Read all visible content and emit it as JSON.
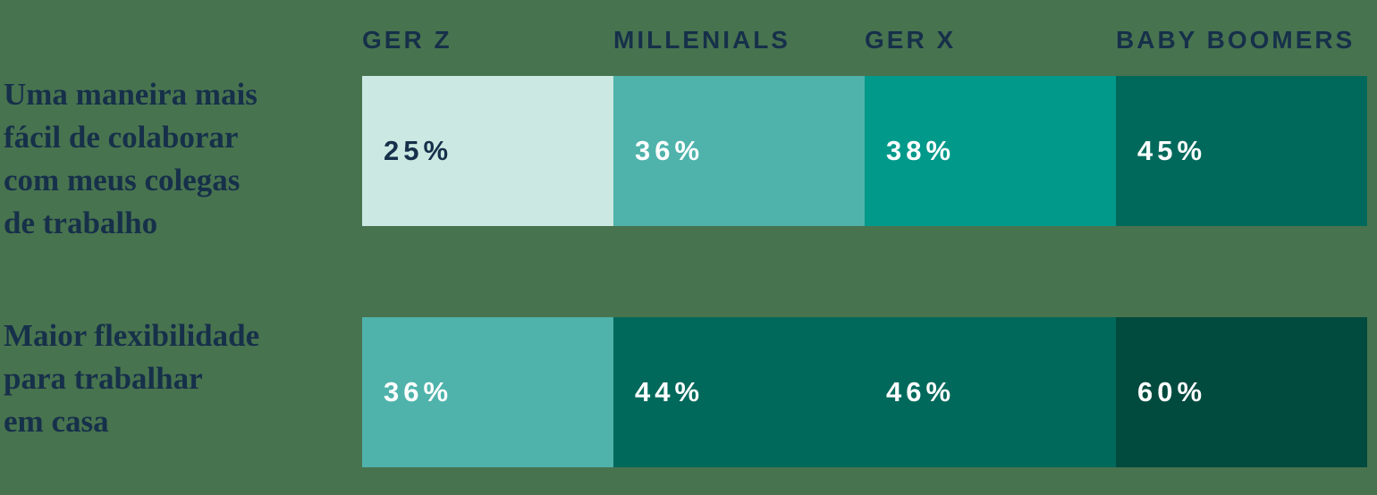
{
  "colors": {
    "background": "#48734F",
    "ink": "#16304A",
    "value_light_text": "#FFFFFF",
    "scale_lightest": "#CBE9E2",
    "scale_light": "#4FB3AB",
    "scale_mid": "#00998A",
    "scale_dark": "#00695B",
    "scale_darkest": "#014A3E"
  },
  "categories": [
    {
      "label": "GER Z"
    },
    {
      "label": "MILLENIALS"
    },
    {
      "label": "GER X"
    },
    {
      "label": "BABY BOOMERS"
    }
  ],
  "rows": [
    {
      "label": "Uma maneira mais fácil de colaborar com meus colegas de trabalho",
      "label_lines": [
        "Uma maneira mais",
        "fácil de colaborar",
        "com meus colegas",
        "de trabalho"
      ],
      "cells": [
        {
          "category": "GER Z",
          "value": 25,
          "display": "25%",
          "color": "#CBE9E2",
          "text_color": "#16304A"
        },
        {
          "category": "MILLENIALS",
          "value": 36,
          "display": "36%",
          "color": "#4FB3AB",
          "text_color": "#FFFFFF"
        },
        {
          "category": "GER X",
          "value": 38,
          "display": "38%",
          "color": "#00998A",
          "text_color": "#FFFFFF"
        },
        {
          "category": "BABY BOOMERS",
          "value": 45,
          "display": "45%",
          "color": "#00695B",
          "text_color": "#FFFFFF"
        }
      ]
    },
    {
      "label": "Maior flexibilidade para trabalhar em casa",
      "label_lines": [
        "Maior flexibilidade",
        "para trabalhar",
        "em casa"
      ],
      "cells": [
        {
          "category": "GER Z",
          "value": 36,
          "display": "36%",
          "color": "#4FB3AB",
          "text_color": "#FFFFFF"
        },
        {
          "category": "MILLENIALS",
          "value": 44,
          "display": "44%",
          "color": "#00695B",
          "text_color": "#FFFFFF"
        },
        {
          "category": "GER X",
          "value": 46,
          "display": "46%",
          "color": "#00695B",
          "text_color": "#FFFFFF"
        },
        {
          "category": "BABY BOOMERS",
          "value": 60,
          "display": "60%",
          "color": "#014A3E",
          "text_color": "#FFFFFF"
        }
      ]
    }
  ],
  "chart_data": {
    "type": "heatmap",
    "title": "",
    "categories": [
      "GER Z",
      "MILLENIALS",
      "GER X",
      "BABY BOOMERS"
    ],
    "unit": "%",
    "series": [
      {
        "name": "Uma maneira mais fácil de colaborar com meus colegas de trabalho",
        "values": [
          25,
          36,
          38,
          45
        ]
      },
      {
        "name": "Maior flexibilidade para trabalhar em casa",
        "values": [
          36,
          44,
          46,
          60
        ]
      }
    ],
    "layout": {
      "legend": "none",
      "grid": false,
      "value_labels": "inside-left",
      "column_headers": "top",
      "row_labels": "left",
      "color_encoding": "darker = higher percentage"
    }
  }
}
